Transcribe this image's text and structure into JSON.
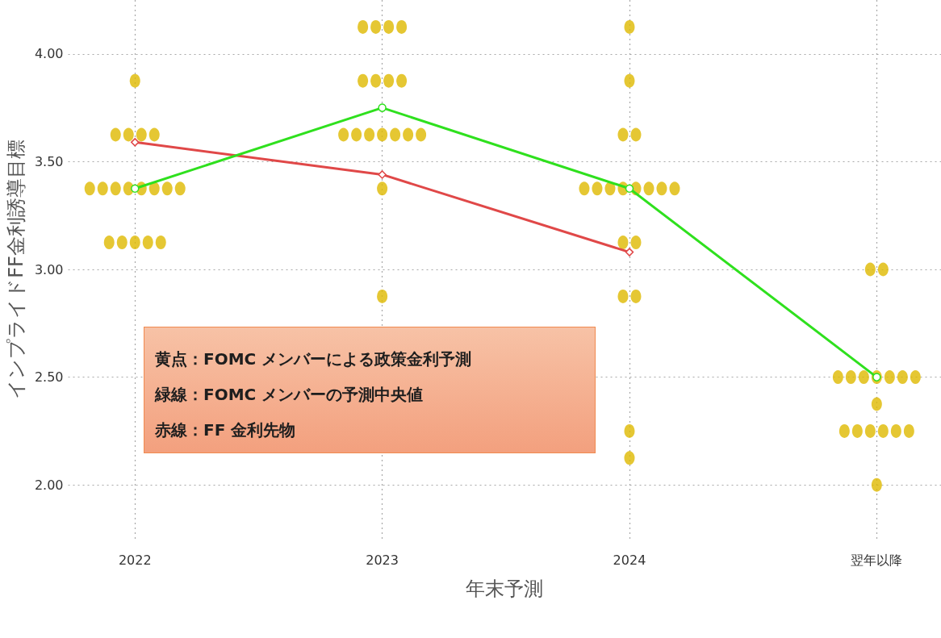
{
  "chart_data": {
    "type": "scatter",
    "xlabel": "年末予測",
    "ylabel": "インプライドFF金利誘導目標",
    "categories": [
      "2022",
      "2023",
      "2024",
      "翌年以降"
    ],
    "ylim": [
      1.75,
      4.25
    ],
    "yticks": [
      {
        "value": 2,
        "label": "2.00"
      },
      {
        "value": 2.5,
        "label": "2.50"
      },
      {
        "value": 3,
        "label": "3.00"
      },
      {
        "value": 3.5,
        "label": "3.50"
      },
      {
        "value": 4,
        "label": "4.00"
      }
    ],
    "grid": true,
    "marker": "circle",
    "annotations": [
      "黄点：FOMC メンバーによる政策金利予測",
      "緑線：FOMC メンバーの予測中央値",
      "赤線：FF 金利先物"
    ],
    "series": [
      {
        "color": "#dfb900",
        "values": [
          3.875,
          4.125,
          4.125,
          3.0
        ]
      },
      {
        "color": "#dfb900",
        "values": [
          3.625,
          4.125,
          3.875,
          3.0
        ]
      },
      {
        "color": "#dfb900",
        "values": [
          3.625,
          4.125,
          3.625,
          2.5
        ]
      },
      {
        "color": "#dfb900",
        "values": [
          3.625,
          4.125,
          3.625,
          2.5
        ]
      },
      {
        "color": "#dfb900",
        "values": [
          3.625,
          3.875,
          3.375,
          2.5
        ]
      },
      {
        "color": "#dfb900",
        "values": [
          3.375,
          3.875,
          3.375,
          2.5
        ]
      },
      {
        "color": "#dfb900",
        "values": [
          3.375,
          3.875,
          3.375,
          2.5
        ]
      },
      {
        "color": "#dfb900",
        "values": [
          3.375,
          3.875,
          3.375,
          2.5
        ]
      },
      {
        "color": "#dfb900",
        "values": [
          3.375,
          3.625,
          3.375,
          2.5
        ]
      },
      {
        "color": "#dfb900",
        "values": [
          3.375,
          3.625,
          3.375,
          2.375
        ]
      },
      {
        "color": "#dfb900",
        "values": [
          3.375,
          3.625,
          3.375,
          2.25
        ]
      },
      {
        "color": "#dfb900",
        "values": [
          3.375,
          3.625,
          3.375,
          2.25
        ]
      },
      {
        "color": "#dfb900",
        "values": [
          3.375,
          3.625,
          3.125,
          2.25
        ]
      },
      {
        "color": "#dfb900",
        "values": [
          3.125,
          3.625,
          3.125,
          2.25
        ]
      },
      {
        "color": "#dfb900",
        "values": [
          3.125,
          3.625,
          2.875,
          2.25
        ]
      },
      {
        "color": "#dfb900",
        "values": [
          3.125,
          3.375,
          2.875,
          2.25
        ]
      },
      {
        "color": "#dfb900",
        "values": [
          3.125,
          2.875,
          2.25,
          2.0
        ]
      },
      {
        "color": "#dfb900",
        "values": [
          3.125,
          null,
          2.125,
          null
        ]
      },
      {
        "type": "line",
        "color": "#e04848",
        "marker": "diamond",
        "line_style": "solid",
        "values": [
          3.59,
          3.44,
          3.08,
          null
        ]
      },
      {
        "type": "line",
        "color": "#2fe01e",
        "line_style": "solid",
        "values": [
          3.375,
          3.75,
          3.375,
          2.5
        ]
      }
    ]
  }
}
